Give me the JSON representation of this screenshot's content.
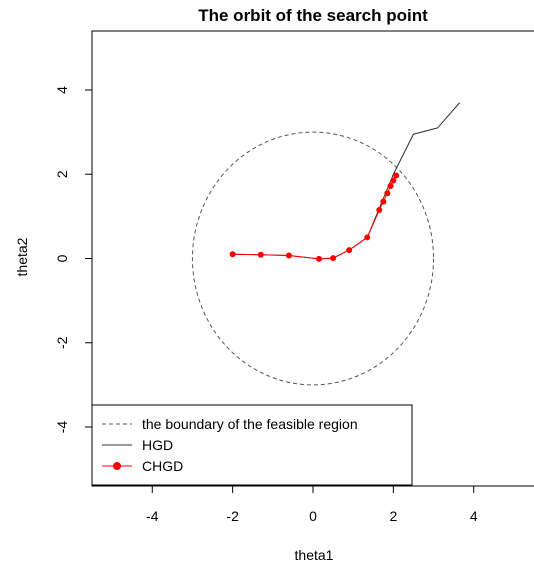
{
  "chart_data": {
    "type": "line",
    "title": "The orbit of the search point",
    "xlabel": "theta1",
    "ylabel": "theta2",
    "xlim": [
      -5.5,
      5.5
    ],
    "ylim": [
      -5.4,
      5.4
    ],
    "xticks": [
      -4,
      -2,
      0,
      2,
      4
    ],
    "yticks": [
      -4,
      -2,
      0,
      2,
      4
    ],
    "boundary": {
      "center": [
        0,
        0
      ],
      "radius": 3
    },
    "series": [
      {
        "name": "the boundary of the feasible region",
        "style": "dashed",
        "color": "#555555"
      },
      {
        "name": "HGD",
        "style": "solid",
        "color": "#333333",
        "x": [
          -2.0,
          -1.3,
          -0.6,
          0.15,
          0.5,
          0.9,
          1.35,
          2.0,
          2.5,
          3.1,
          3.65
        ],
        "y": [
          0.1,
          0.09,
          0.07,
          -0.01,
          0.01,
          0.2,
          0.5,
          2.0,
          2.95,
          3.1,
          3.7
        ]
      },
      {
        "name": "CHGD",
        "style": "solid-points",
        "color": "#ff0000",
        "x": [
          -2.0,
          -1.3,
          -0.6,
          0.15,
          0.5,
          0.9,
          1.35,
          1.65,
          1.75,
          1.85,
          1.93,
          2.0,
          2.07
        ],
        "y": [
          0.1,
          0.09,
          0.07,
          -0.01,
          0.01,
          0.2,
          0.5,
          1.15,
          1.35,
          1.55,
          1.72,
          1.85,
          1.97
        ]
      }
    ],
    "legend": {
      "placement": "bottom-left"
    }
  }
}
